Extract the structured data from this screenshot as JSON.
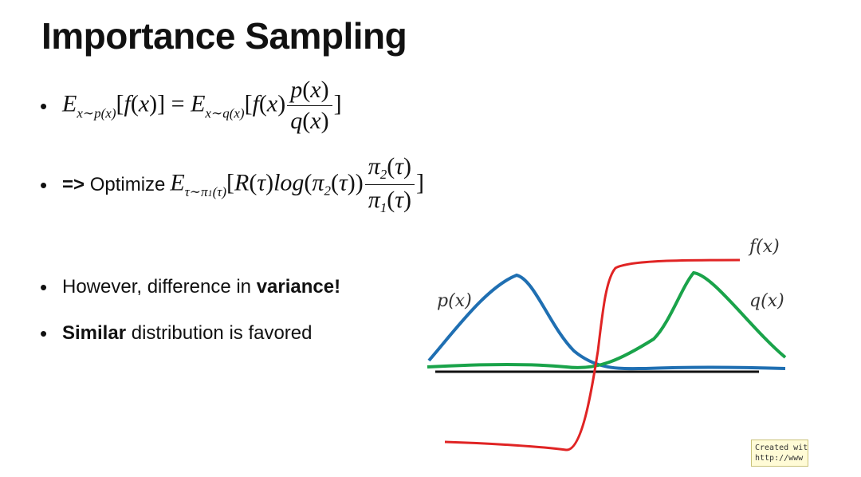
{
  "slide": {
    "title": "Importance Sampling",
    "bullets": [
      {
        "type": "math",
        "text": "E_{x~p(x)}[f(x)] = E_{x~q(x)}[f(x) p(x)/q(x)]"
      },
      {
        "type": "math",
        "prefix": "=> Optimize",
        "text": "E_{τ~π1(τ)}[R(τ)log(π2(τ)) π2(τ)/π1(τ)]"
      },
      {
        "type": "text",
        "before": "However, difference in ",
        "bold": "variance!",
        "after": ""
      },
      {
        "type": "text",
        "before": "",
        "bold": "Similar",
        "after": " distribution is favored"
      }
    ]
  },
  "figure": {
    "labels": {
      "f": "f(x)",
      "p": "p(x)",
      "q": "q(x)"
    },
    "colors": {
      "p": "#1f6fb2",
      "q": "#1aa34a",
      "f": "#e02424",
      "baseline": "#111111"
    }
  },
  "watermark": {
    "line1": "Created wit",
    "line2": "http://www"
  }
}
